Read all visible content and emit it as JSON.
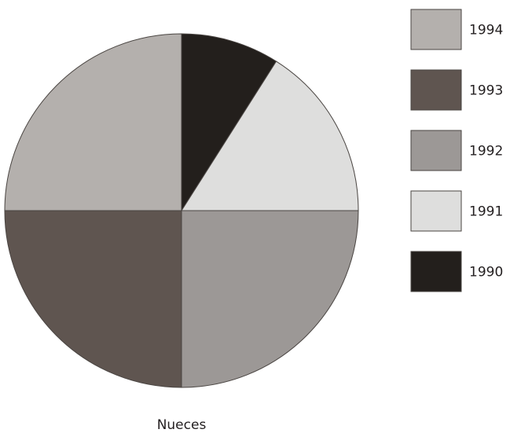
{
  "chart_data": {
    "type": "pie",
    "title": "Nueces",
    "start": "12 o'clock, clockwise",
    "slices": [
      {
        "label": "1990",
        "value": 9,
        "color": "#231f1c"
      },
      {
        "label": "1991",
        "value": 16,
        "color": "#dededd"
      },
      {
        "label": "1992",
        "value": 25,
        "color": "#9c9896"
      },
      {
        "label": "1993",
        "value": 25,
        "color": "#5f5550"
      },
      {
        "label": "1994",
        "value": 25,
        "color": "#b4b0ad"
      }
    ],
    "legend": {
      "position": "right",
      "order": [
        "1994",
        "1993",
        "1992",
        "1991",
        "1990"
      ]
    },
    "stroke_color": "#4a4542"
  }
}
